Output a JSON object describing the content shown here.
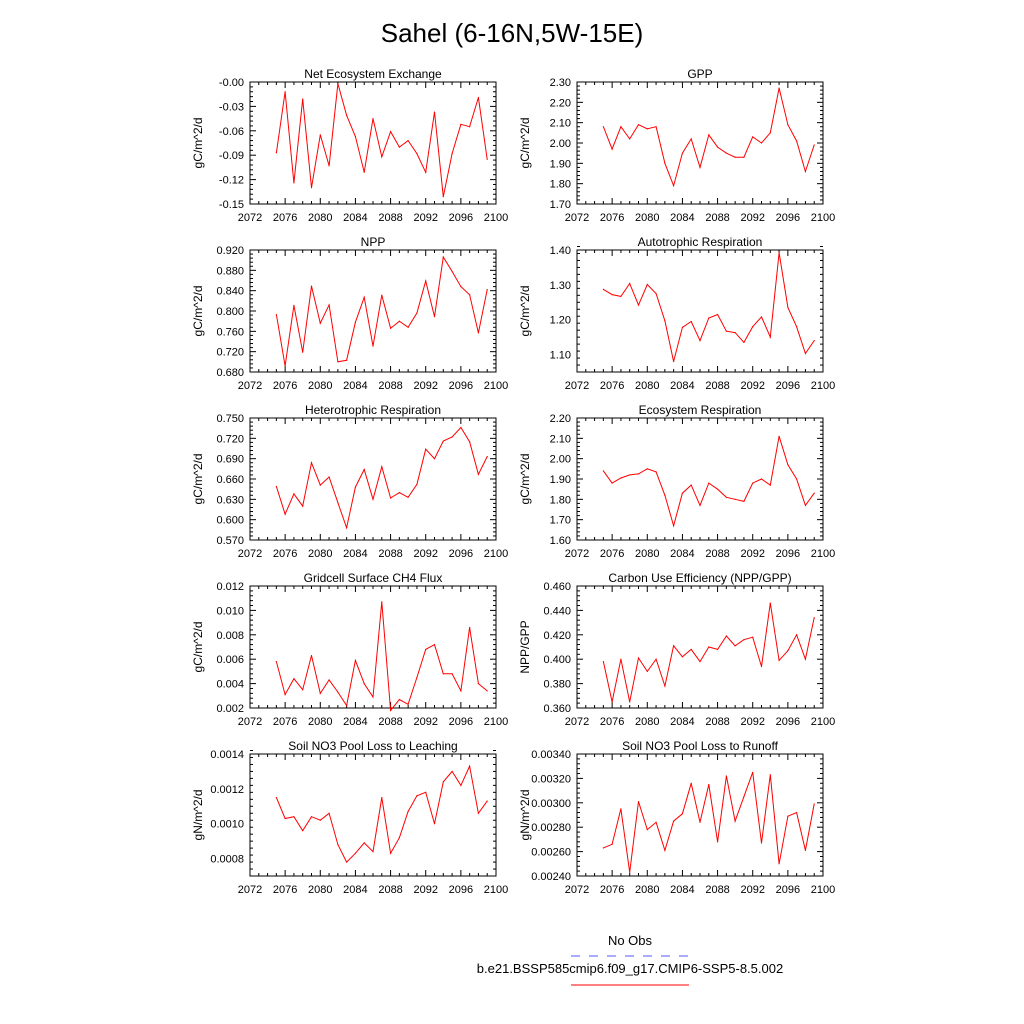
{
  "title": "Sahel (6-16N,5W-15E)",
  "legend": {
    "obs_label": "No Obs",
    "model_label": "b.e21.BSSP585cmip6.f09_g17.CMIP6-SSP5-8.5.002"
  },
  "colors": {
    "series": "#ff0000",
    "obs_dash": "#5555ff",
    "axis": "#000000"
  },
  "chart_data": [
    {
      "type": "line",
      "title": "Net Ecosystem Exchange",
      "ylabel": "gC/m^2/d",
      "xlim": [
        2072,
        2100
      ],
      "xticks": [
        2072,
        2076,
        2080,
        2084,
        2088,
        2092,
        2096,
        2100
      ],
      "ylim": [
        -0.15,
        0.0
      ],
      "yticks": [
        "-0.15",
        "-0.12",
        "-0.09",
        "-0.06",
        "-0.03",
        "-0.00"
      ],
      "series": [
        {
          "x": [
            2075,
            2076,
            2077,
            2078,
            2079,
            2080,
            2081,
            2082,
            2083,
            2084,
            2085,
            2086,
            2087,
            2088,
            2089,
            2090,
            2091,
            2092,
            2093,
            2094,
            2095,
            2096,
            2097,
            2098,
            2099
          ],
          "values": [
            -0.087,
            -0.012,
            -0.124,
            -0.021,
            -0.13,
            -0.065,
            -0.103,
            -0.002,
            -0.041,
            -0.067,
            -0.111,
            -0.045,
            -0.092,
            -0.061,
            -0.08,
            -0.072,
            -0.088,
            -0.111,
            -0.037,
            -0.141,
            -0.088,
            -0.052,
            -0.055,
            -0.019,
            -0.095
          ]
        }
      ]
    },
    {
      "type": "line",
      "title": "GPP",
      "ylabel": "gC/m^2/d",
      "xlim": [
        2072,
        2100
      ],
      "xticks": [
        2072,
        2076,
        2080,
        2084,
        2088,
        2092,
        2096,
        2100
      ],
      "ylim": [
        1.7,
        2.3
      ],
      "yticks": [
        "1.70",
        "1.80",
        "1.90",
        "2.00",
        "2.10",
        "2.20",
        "2.30"
      ],
      "series": [
        {
          "x": [
            2075,
            2076,
            2077,
            2078,
            2079,
            2080,
            2081,
            2082,
            2083,
            2084,
            2085,
            2086,
            2087,
            2088,
            2089,
            2090,
            2091,
            2092,
            2093,
            2094,
            2095,
            2096,
            2097,
            2098,
            2099
          ],
          "values": [
            2.08,
            1.97,
            2.08,
            2.02,
            2.09,
            2.07,
            2.08,
            1.9,
            1.79,
            1.95,
            2.02,
            1.88,
            2.04,
            1.98,
            1.95,
            1.93,
            1.93,
            2.03,
            2.0,
            2.05,
            2.27,
            2.09,
            2.01,
            1.86,
            1.99
          ]
        }
      ]
    },
    {
      "type": "line",
      "title": "NPP",
      "ylabel": "gC/m^2/d",
      "xlim": [
        2072,
        2100
      ],
      "xticks": [
        2072,
        2076,
        2080,
        2084,
        2088,
        2092,
        2096,
        2100
      ],
      "ylim": [
        0.68,
        0.92
      ],
      "yticks": [
        "0.680",
        "0.720",
        "0.760",
        "0.800",
        "0.840",
        "0.880",
        "0.920"
      ],
      "series": [
        {
          "x": [
            2075,
            2076,
            2077,
            2078,
            2079,
            2080,
            2081,
            2082,
            2083,
            2084,
            2085,
            2086,
            2087,
            2088,
            2089,
            2090,
            2091,
            2092,
            2093,
            2094,
            2095,
            2096,
            2097,
            2098,
            2099
          ],
          "values": [
            0.793,
            0.692,
            0.811,
            0.719,
            0.849,
            0.776,
            0.812,
            0.7,
            0.703,
            0.778,
            0.827,
            0.731,
            0.831,
            0.766,
            0.78,
            0.768,
            0.796,
            0.859,
            0.789,
            0.906,
            0.878,
            0.848,
            0.832,
            0.757,
            0.842
          ]
        }
      ]
    },
    {
      "type": "line",
      "title": "Autotrophic Respiration",
      "ylabel": "gC/m^2/d",
      "xlim": [
        2072,
        2100
      ],
      "xticks": [
        2072,
        2076,
        2080,
        2084,
        2088,
        2092,
        2096,
        2100
      ],
      "ylim": [
        1.05,
        1.4
      ],
      "yticks": [
        "1.10",
        "1.20",
        "1.30",
        "1.40"
      ],
      "series": [
        {
          "x": [
            2075,
            2076,
            2077,
            2078,
            2079,
            2080,
            2081,
            2082,
            2083,
            2084,
            2085,
            2086,
            2087,
            2088,
            2089,
            2090,
            2091,
            2092,
            2093,
            2094,
            2095,
            2096,
            2097,
            2098,
            2099
          ],
          "values": [
            1.287,
            1.272,
            1.267,
            1.304,
            1.242,
            1.301,
            1.275,
            1.197,
            1.08,
            1.178,
            1.195,
            1.14,
            1.205,
            1.215,
            1.167,
            1.163,
            1.135,
            1.18,
            1.208,
            1.15,
            1.392,
            1.235,
            1.18,
            1.103,
            1.14
          ]
        }
      ]
    },
    {
      "type": "line",
      "title": "Heterotrophic Respiration",
      "ylabel": "gC/m^2/d",
      "xlim": [
        2072,
        2100
      ],
      "xticks": [
        2072,
        2076,
        2080,
        2084,
        2088,
        2092,
        2096,
        2100
      ],
      "ylim": [
        0.57,
        0.75
      ],
      "yticks": [
        "0.570",
        "0.600",
        "0.630",
        "0.660",
        "0.690",
        "0.720",
        "0.750"
      ],
      "series": [
        {
          "x": [
            2075,
            2076,
            2077,
            2078,
            2079,
            2080,
            2081,
            2082,
            2083,
            2084,
            2085,
            2086,
            2087,
            2088,
            2089,
            2090,
            2091,
            2092,
            2093,
            2094,
            2095,
            2096,
            2097,
            2098,
            2099
          ],
          "values": [
            0.649,
            0.608,
            0.638,
            0.62,
            0.684,
            0.651,
            0.663,
            0.625,
            0.588,
            0.648,
            0.674,
            0.63,
            0.678,
            0.632,
            0.64,
            0.633,
            0.652,
            0.704,
            0.69,
            0.716,
            0.722,
            0.736,
            0.715,
            0.667,
            0.693
          ]
        }
      ]
    },
    {
      "type": "line",
      "title": "Ecosystem Respiration",
      "ylabel": "gC/m^2/d",
      "xlim": [
        2072,
        2100
      ],
      "xticks": [
        2072,
        2076,
        2080,
        2084,
        2088,
        2092,
        2096,
        2100
      ],
      "ylim": [
        1.6,
        2.2
      ],
      "yticks": [
        "1.60",
        "1.70",
        "1.80",
        "1.90",
        "2.00",
        "2.10",
        "2.20"
      ],
      "series": [
        {
          "x": [
            2075,
            2076,
            2077,
            2078,
            2079,
            2080,
            2081,
            2082,
            2083,
            2084,
            2085,
            2086,
            2087,
            2088,
            2089,
            2090,
            2091,
            2092,
            2093,
            2094,
            2095,
            2096,
            2097,
            2098,
            2099
          ],
          "values": [
            1.94,
            1.88,
            1.905,
            1.92,
            1.925,
            1.95,
            1.935,
            1.82,
            1.67,
            1.83,
            1.87,
            1.77,
            1.88,
            1.85,
            1.81,
            1.8,
            1.79,
            1.88,
            1.9,
            1.87,
            2.11,
            1.97,
            1.9,
            1.77,
            1.83
          ]
        }
      ]
    },
    {
      "type": "line",
      "title": "Gridcell Surface CH4 Flux",
      "ylabel": "gC/m^2/d",
      "xlim": [
        2072,
        2100
      ],
      "xticks": [
        2072,
        2076,
        2080,
        2084,
        2088,
        2092,
        2096,
        2100
      ],
      "ylim": [
        0.002,
        0.012
      ],
      "yticks": [
        "0.002",
        "0.004",
        "0.006",
        "0.008",
        "0.010",
        "0.012"
      ],
      "series": [
        {
          "x": [
            2075,
            2076,
            2077,
            2078,
            2079,
            2080,
            2081,
            2082,
            2083,
            2084,
            2085,
            2086,
            2087,
            2088,
            2089,
            2090,
            2091,
            2092,
            2093,
            2094,
            2095,
            2096,
            2097,
            2098,
            2099
          ],
          "values": [
            0.0058,
            0.0031,
            0.0044,
            0.0035,
            0.0063,
            0.0032,
            0.0043,
            0.0033,
            0.0022,
            0.0059,
            0.004,
            0.0029,
            0.0107,
            0.0018,
            0.0027,
            0.0023,
            0.0045,
            0.0068,
            0.0072,
            0.0048,
            0.0048,
            0.0034,
            0.0086,
            0.004,
            0.0034
          ]
        }
      ]
    },
    {
      "type": "line",
      "title": "Carbon Use Efficiency (NPP/GPP)",
      "ylabel": "NPP/GPP",
      "xlim": [
        2072,
        2100
      ],
      "xticks": [
        2072,
        2076,
        2080,
        2084,
        2088,
        2092,
        2096,
        2100
      ],
      "ylim": [
        0.36,
        0.46
      ],
      "yticks": [
        "0.360",
        "0.380",
        "0.400",
        "0.420",
        "0.440",
        "0.460"
      ],
      "series": [
        {
          "x": [
            2075,
            2076,
            2077,
            2078,
            2079,
            2080,
            2081,
            2082,
            2083,
            2084,
            2085,
            2086,
            2087,
            2088,
            2089,
            2090,
            2091,
            2092,
            2093,
            2094,
            2095,
            2096,
            2097,
            2098,
            2099
          ],
          "values": [
            0.398,
            0.365,
            0.4,
            0.365,
            0.401,
            0.39,
            0.4,
            0.378,
            0.411,
            0.402,
            0.408,
            0.398,
            0.41,
            0.408,
            0.419,
            0.411,
            0.416,
            0.418,
            0.394,
            0.446,
            0.399,
            0.407,
            0.42,
            0.4,
            0.434
          ]
        }
      ]
    },
    {
      "type": "line",
      "title": "Soil NO3 Pool Loss to Leaching",
      "ylabel": "gN/m^2/d",
      "xlim": [
        2072,
        2100
      ],
      "xticks": [
        2072,
        2076,
        2080,
        2084,
        2088,
        2092,
        2096,
        2100
      ],
      "ylim": [
        0.0007,
        0.0014
      ],
      "yticks": [
        "0.0008",
        "0.0010",
        "0.0012",
        "0.0014"
      ],
      "series": [
        {
          "x": [
            2075,
            2076,
            2077,
            2078,
            2079,
            2080,
            2081,
            2082,
            2083,
            2084,
            2085,
            2086,
            2087,
            2088,
            2089,
            2090,
            2091,
            2092,
            2093,
            2094,
            2095,
            2096,
            2097,
            2098,
            2099
          ],
          "values": [
            0.00115,
            0.00103,
            0.00104,
            0.00096,
            0.00104,
            0.00102,
            0.00106,
            0.00088,
            0.00078,
            0.00083,
            0.00089,
            0.00084,
            0.00115,
            0.00083,
            0.00092,
            0.00107,
            0.00116,
            0.00118,
            0.001,
            0.00124,
            0.0013,
            0.00122,
            0.00133,
            0.00106,
            0.00113
          ]
        }
      ]
    },
    {
      "type": "line",
      "title": "Soil NO3 Pool Loss to Runoff",
      "ylabel": "gN/m^2/d",
      "xlim": [
        2072,
        2100
      ],
      "xticks": [
        2072,
        2076,
        2080,
        2084,
        2088,
        2092,
        2096,
        2100
      ],
      "ylim": [
        0.0024,
        0.0034
      ],
      "yticks": [
        "0.00240",
        "0.00260",
        "0.00280",
        "0.00300",
        "0.00320",
        "0.00340"
      ],
      "series": [
        {
          "x": [
            2075,
            2076,
            2077,
            2078,
            2079,
            2080,
            2081,
            2082,
            2083,
            2084,
            2085,
            2086,
            2087,
            2088,
            2089,
            2090,
            2091,
            2092,
            2093,
            2094,
            2095,
            2096,
            2097,
            2098,
            2099
          ],
          "values": [
            0.00263,
            0.00266,
            0.00295,
            0.00243,
            0.00301,
            0.00278,
            0.00284,
            0.00261,
            0.00285,
            0.00291,
            0.00316,
            0.00284,
            0.00315,
            0.00268,
            0.00322,
            0.00285,
            0.00305,
            0.00325,
            0.00267,
            0.00323,
            0.0025,
            0.00289,
            0.00292,
            0.00261,
            0.00299
          ]
        }
      ]
    }
  ]
}
